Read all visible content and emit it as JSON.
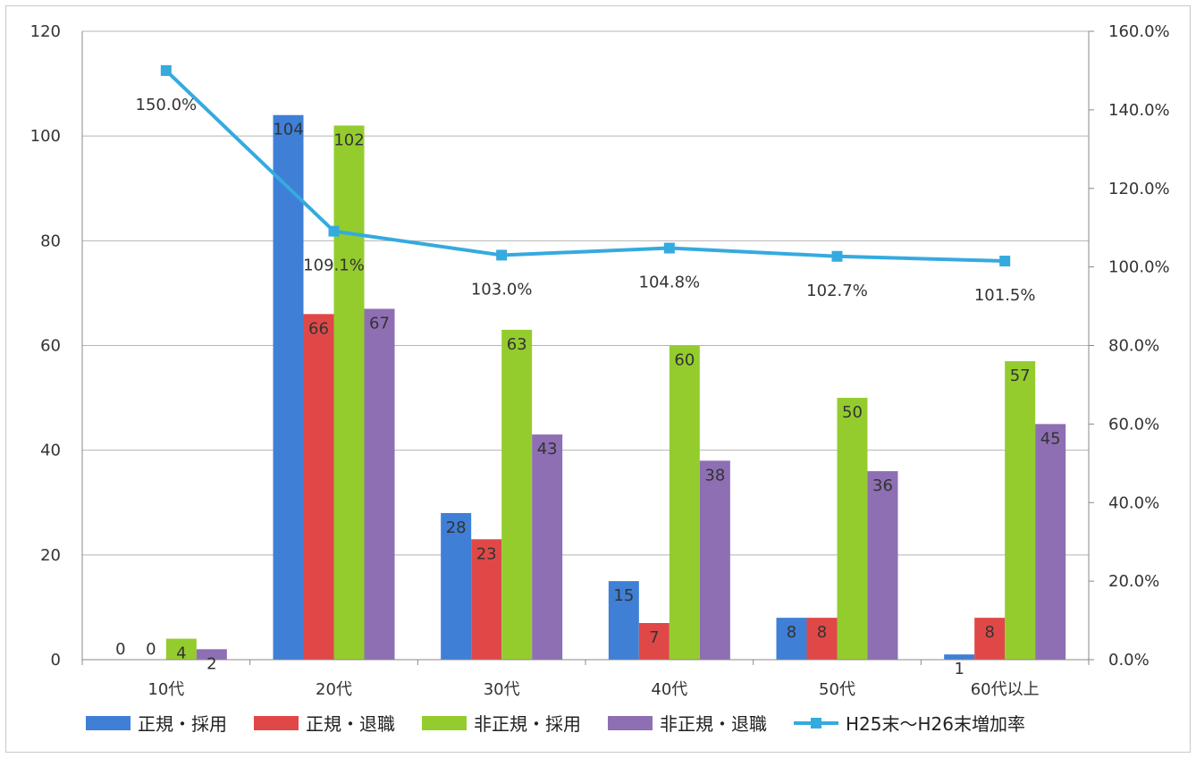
{
  "chart_data": {
    "type": "bar",
    "categories": [
      "10代",
      "20代",
      "30代",
      "40代",
      "50代",
      "60代以上"
    ],
    "series": [
      {
        "name": "正規・採用",
        "values": [
          0,
          104,
          28,
          15,
          8,
          1
        ],
        "color": "#3f7fd6"
      },
      {
        "name": "正規・退職",
        "values": [
          0,
          66,
          23,
          7,
          8,
          8
        ],
        "color": "#e04848"
      },
      {
        "name": "非正規・採用",
        "values": [
          4,
          102,
          63,
          60,
          50,
          57
        ],
        "color": "#94cc2e"
      },
      {
        "name": "非正規・退職",
        "values": [
          2,
          67,
          43,
          38,
          36,
          45
        ],
        "color": "#8e6fb3"
      }
    ],
    "line_series": {
      "name": "H25末～H26末増加率",
      "values": [
        150.0,
        109.1,
        103.0,
        104.8,
        102.7,
        101.5
      ],
      "labels": [
        "150.0%",
        "109.1%",
        "103.0%",
        "104.8%",
        "102.7%",
        "101.5%"
      ],
      "color": "#35aadf",
      "axis": "right"
    },
    "ylim": [
      0,
      120
    ],
    "y_ticks": [
      "0",
      "20",
      "40",
      "60",
      "80",
      "100",
      "120"
    ],
    "y2lim": [
      0,
      160
    ],
    "y2_ticks": [
      "0.0%",
      "20.0%",
      "40.0%",
      "60.0%",
      "80.0%",
      "100.0%",
      "120.0%",
      "140.0%",
      "160.0%"
    ],
    "grid": true,
    "legend_position": "bottom"
  }
}
